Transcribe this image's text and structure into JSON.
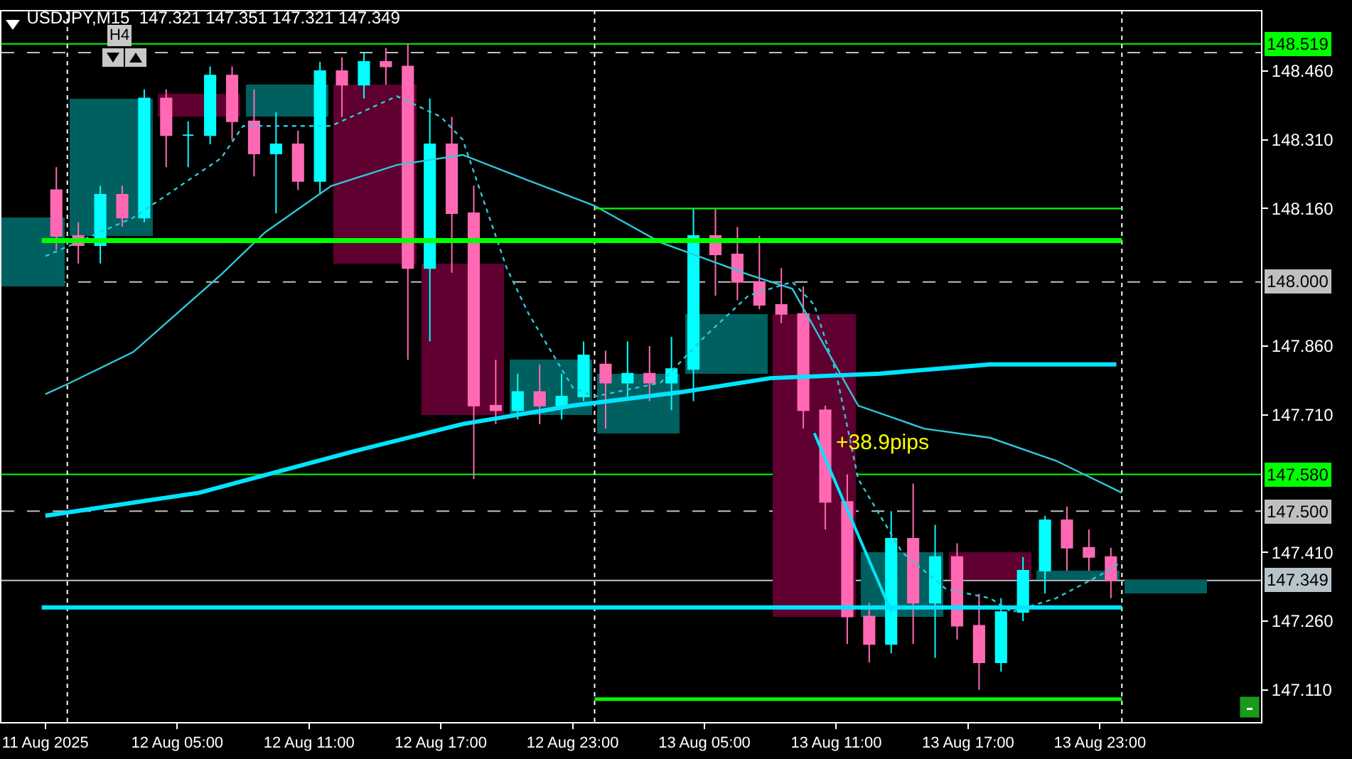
{
  "chart_data": {
    "type": "candlestick",
    "title": "USDJPY,M15  147.321 147.351 147.321 147.349",
    "xlim": [
      "2025-08-11T21:00",
      "2025-08-14T06:20"
    ],
    "xticks": [
      {
        "value": "2025-08-11T23:00",
        "label": "11 Aug 2025"
      },
      {
        "value": "2025-08-12T05:00",
        "label": "12 Aug 05:00"
      },
      {
        "value": "2025-08-12T11:00",
        "label": "12 Aug 11:00"
      },
      {
        "value": "2025-08-12T17:00",
        "label": "12 Aug 17:00"
      },
      {
        "value": "2025-08-12T23:00",
        "label": "12 Aug 23:00"
      },
      {
        "value": "2025-08-13T05:00",
        "label": "13 Aug 05:00"
      },
      {
        "value": "2025-08-13T11:00",
        "label": "13 Aug 11:00"
      },
      {
        "value": "2025-08-13T17:00",
        "label": "13 Aug 17:00"
      },
      {
        "value": "2025-08-13T23:00",
        "label": "13 Aug 23:00"
      }
    ],
    "ylim": [
      147.04,
      148.59
    ],
    "yticks": [
      {
        "value": 147.11,
        "label": "147.110"
      },
      {
        "value": 147.26,
        "label": "147.260"
      },
      {
        "value": 147.41,
        "label": "147.410"
      },
      {
        "value": 147.71,
        "label": "147.710"
      },
      {
        "value": 147.86,
        "label": "147.860"
      },
      {
        "value": 148.16,
        "label": "148.160"
      },
      {
        "value": 148.31,
        "label": "148.310"
      },
      {
        "value": 148.46,
        "label": "148.460"
      }
    ],
    "grid": false,
    "series": [
      {
        "type": "bar",
        "x": [
          "2025-08-11T22:00",
          "2025-08-12T02:00",
          "2025-08-12T06:00",
          "2025-08-12T10:00",
          "2025-08-12T14:00",
          "2025-08-12T18:00",
          "2025-08-12T22:00",
          "2025-08-13T02:00",
          "2025-08-13T06:00",
          "2025-08-13T10:00",
          "2025-08-13T14:00",
          "2025-08-13T18:00",
          "2025-08-13T22:00",
          "2025-08-14T02:00"
        ],
        "base": [
          147.99,
          148.1,
          148.36,
          148.36,
          148.04,
          147.71,
          147.71,
          147.67,
          147.8,
          147.27,
          147.27,
          147.35,
          147.35,
          147.32
        ],
        "values": [
          0.15,
          0.3,
          0.05,
          0.07,
          0.39,
          0.33,
          0.12,
          0.13,
          0.13,
          0.66,
          0.14,
          0.06,
          0.02,
          0.03
        ],
        "colors": [
          "#005f5f",
          "#005f5f",
          "#5f0030",
          "#005f5f",
          "#5f0030",
          "#5f0030",
          "#005f5f",
          "#005f5f",
          "#005f5f",
          "#5f0030",
          "#005f5f",
          "#5f0030",
          "#005f5f",
          "#005f5f"
        ]
      },
      {
        "type": "line",
        "color": "#00e5ff",
        "line_style": "solid",
        "x": [
          "2025-08-11T23:00",
          "2025-08-12T06:00",
          "2025-08-12T13:00",
          "2025-08-12T18:00",
          "2025-08-12T23:00",
          "2025-08-13T04:00",
          "2025-08-13T08:00",
          "2025-08-13T13:00",
          "2025-08-13T18:00",
          "2025-08-13T23:45"
        ],
        "values": [
          147.49,
          147.54,
          147.63,
          147.69,
          147.73,
          147.76,
          147.79,
          147.8,
          147.82,
          147.82
        ]
      },
      {
        "type": "line",
        "color": "#2ec8d8",
        "line_style": "solid",
        "x": [
          "2025-08-11T23:00",
          "2025-08-12T00:00",
          "2025-08-12T03:00",
          "2025-08-12T07:00",
          "2025-08-12T09:00",
          "2025-08-12T12:00",
          "2025-08-12T15:00",
          "2025-08-12T18:00",
          "2025-08-12T21:00",
          "2025-08-13T00:00",
          "2025-08-13T03:00",
          "2025-08-13T07:00",
          "2025-08-13T09:00",
          "2025-08-13T12:00",
          "2025-08-13T15:00",
          "2025-08-13T18:00",
          "2025-08-13T21:00",
          "2025-08-14T00:00"
        ],
        "values": [
          147.755,
          147.777,
          147.847,
          148.016,
          148.108,
          148.209,
          148.255,
          148.277,
          148.221,
          148.166,
          148.086,
          148.016,
          147.985,
          147.73,
          147.68,
          147.66,
          147.61,
          147.54
        ]
      },
      {
        "type": "line",
        "color": "#2ec8d8",
        "line_style": "dotted",
        "x": [
          "2025-08-11T23:00",
          "2025-08-12T03:00",
          "2025-08-12T07:00",
          "2025-08-12T08:00",
          "2025-08-12T12:00",
          "2025-08-12T15:00",
          "2025-08-12T17:00",
          "2025-08-12T18:00",
          "2025-08-12T20:00",
          "2025-08-12T21:00",
          "2025-08-12T23:00",
          "2025-08-13T00:00",
          "2025-08-13T03:00",
          "2025-08-13T05:00",
          "2025-08-13T07:00",
          "2025-08-13T09:00",
          "2025-08-13T10:00",
          "2025-08-13T11:00",
          "2025-08-13T12:00",
          "2025-08-13T14:00",
          "2025-08-13T16:00",
          "2025-08-13T18:00",
          "2025-08-13T19:00",
          "2025-08-13T21:00",
          "2025-08-13T23:00",
          "2025-08-14T00:00"
        ],
        "values": [
          148.056,
          148.14,
          148.27,
          148.34,
          148.34,
          148.405,
          148.36,
          148.31,
          148.03,
          147.93,
          147.77,
          147.75,
          147.78,
          147.88,
          147.97,
          148.0,
          147.95,
          147.8,
          147.57,
          147.41,
          147.33,
          147.31,
          147.28,
          147.31,
          147.36,
          147.39
        ]
      },
      {
        "type": "line",
        "color": "#00ff00",
        "line_style": "solid",
        "x": [
          "2025-08-11T22:50",
          "2025-08-14T00:00"
        ],
        "values": [
          148.09,
          148.09
        ]
      },
      {
        "type": "line",
        "color": "#00ff00",
        "line_style": "solid",
        "x": [
          "2025-08-13T00:00",
          "2025-08-14T00:00"
        ],
        "values": [
          148.16,
          148.16
        ]
      },
      {
        "type": "line",
        "color": "#00ff00",
        "line_style": "solid",
        "x": [
          "2025-08-13T00:00",
          "2025-08-14T00:00"
        ],
        "values": [
          147.09,
          147.09
        ]
      },
      {
        "type": "line",
        "color": "#00e5ff",
        "line_style": "solid",
        "x": [
          "2025-08-11T22:50",
          "2025-08-14T00:00"
        ],
        "values": [
          147.29,
          147.29
        ]
      },
      {
        "type": "line",
        "color": "#00e5ff",
        "line_style": "solid",
        "x": [
          "2025-08-13T10:00",
          "2025-08-13T13:30"
        ],
        "values": [
          147.67,
          147.281
        ]
      },
      {
        "x": [
          "2025-08-11T23:30",
          "2025-08-12T00:30",
          "2025-08-12T01:30",
          "2025-08-12T02:30",
          "2025-08-12T03:30",
          "2025-08-12T04:30",
          "2025-08-12T05:30",
          "2025-08-12T06:30",
          "2025-08-12T07:30",
          "2025-08-12T08:30",
          "2025-08-12T09:30",
          "2025-08-12T10:30",
          "2025-08-12T11:30",
          "2025-08-12T12:30",
          "2025-08-12T13:30",
          "2025-08-12T14:30",
          "2025-08-12T15:30",
          "2025-08-12T16:30",
          "2025-08-12T17:30",
          "2025-08-12T18:30",
          "2025-08-12T19:30",
          "2025-08-12T20:30",
          "2025-08-12T21:30",
          "2025-08-12T22:30",
          "2025-08-12T23:30",
          "2025-08-13T00:30",
          "2025-08-13T01:30",
          "2025-08-13T02:30",
          "2025-08-13T03:30",
          "2025-08-13T04:30",
          "2025-08-13T05:30",
          "2025-08-13T06:30",
          "2025-08-13T07:30",
          "2025-08-13T08:30",
          "2025-08-13T09:30",
          "2025-08-13T10:30",
          "2025-08-13T11:30",
          "2025-08-13T12:30",
          "2025-08-13T13:30",
          "2025-08-13T14:30",
          "2025-08-13T15:30",
          "2025-08-13T16:30",
          "2025-08-13T17:30",
          "2025-08-13T18:30",
          "2025-08-13T19:30",
          "2025-08-13T20:30",
          "2025-08-13T21:30",
          "2025-08-13T22:30",
          "2025-08-13T23:30"
        ],
        "ohlc": [
          [
            148.2,
            148.25,
            148.07,
            148.1
          ],
          [
            148.1,
            148.13,
            148.04,
            148.08
          ],
          [
            148.08,
            148.21,
            148.04,
            148.19
          ],
          [
            148.19,
            148.21,
            148.12,
            148.14
          ],
          [
            148.14,
            148.42,
            148.13,
            148.4
          ],
          [
            148.4,
            148.42,
            148.25,
            148.32
          ],
          [
            148.32,
            148.35,
            148.25,
            148.32
          ],
          [
            148.32,
            148.47,
            148.3,
            148.45
          ],
          [
            148.45,
            148.47,
            148.31,
            148.35
          ],
          [
            148.35,
            148.42,
            148.23,
            148.28
          ],
          [
            148.28,
            148.37,
            148.15,
            148.3
          ],
          [
            148.3,
            148.33,
            148.2,
            148.22
          ],
          [
            148.22,
            148.48,
            148.19,
            148.46
          ],
          [
            148.46,
            148.49,
            148.36,
            148.43
          ],
          [
            148.43,
            148.5,
            148.4,
            148.48
          ],
          [
            148.48,
            148.51,
            148.43,
            148.47
          ],
          [
            148.47,
            148.52,
            147.83,
            148.03
          ],
          [
            148.03,
            148.4,
            147.87,
            148.3
          ],
          [
            148.3,
            148.36,
            148.02,
            148.15
          ],
          [
            148.15,
            148.21,
            147.57,
            147.73
          ],
          [
            147.73,
            147.83,
            147.69,
            147.72
          ],
          [
            147.72,
            147.8,
            147.7,
            147.76
          ],
          [
            147.76,
            147.82,
            147.69,
            147.73
          ],
          [
            147.73,
            147.8,
            147.7,
            147.75
          ],
          [
            147.75,
            147.87,
            147.74,
            147.84
          ],
          [
            147.82,
            147.85,
            147.68,
            147.78
          ],
          [
            147.78,
            147.87,
            147.75,
            147.8
          ],
          [
            147.8,
            147.86,
            147.74,
            147.78
          ],
          [
            147.78,
            147.88,
            147.72,
            147.81
          ],
          [
            147.81,
            148.16,
            147.74,
            148.1
          ],
          [
            148.1,
            148.16,
            147.97,
            148.06
          ],
          [
            148.06,
            148.12,
            147.96,
            148.0
          ],
          [
            148.0,
            148.1,
            147.94,
            147.95
          ],
          [
            147.95,
            148.03,
            147.91,
            147.93
          ],
          [
            147.93,
            147.99,
            147.68,
            147.72
          ],
          [
            147.72,
            147.73,
            147.46,
            147.52
          ],
          [
            147.52,
            147.58,
            147.21,
            147.27
          ],
          [
            147.27,
            147.3,
            147.17,
            147.21
          ],
          [
            147.21,
            147.5,
            147.19,
            147.44
          ],
          [
            147.44,
            147.56,
            147.21,
            147.3
          ],
          [
            147.3,
            147.47,
            147.18,
            147.4
          ],
          [
            147.4,
            147.43,
            147.22,
            147.25
          ],
          [
            147.25,
            147.32,
            147.11,
            147.17
          ],
          [
            147.17,
            147.31,
            147.15,
            147.28
          ],
          [
            147.28,
            147.4,
            147.26,
            147.37
          ],
          [
            147.37,
            147.49,
            147.32,
            147.48
          ],
          [
            147.48,
            147.51,
            147.37,
            147.42
          ],
          [
            147.42,
            147.46,
            147.37,
            147.4
          ],
          [
            147.4,
            147.42,
            147.31,
            147.349
          ]
        ],
        "colors": [
          "#ff69b4",
          "#ff69b4",
          "#00ffff",
          "#ff69b4",
          "#00ffff",
          "#ff69b4",
          "#00ffff",
          "#00ffff",
          "#ff69b4",
          "#ff69b4",
          "#00ffff",
          "#ff69b4",
          "#00ffff",
          "#ff69b4",
          "#00ffff",
          "#ff69b4",
          "#ff69b4",
          "#00ffff",
          "#ff69b4",
          "#ff69b4",
          "#ff69b4",
          "#00ffff",
          "#ff69b4",
          "#00ffff",
          "#00ffff",
          "#ff69b4",
          "#00ffff",
          "#ff69b4",
          "#00ffff",
          "#00ffff",
          "#ff69b4",
          "#ff69b4",
          "#ff69b4",
          "#ff69b4",
          "#ff69b4",
          "#ff69b4",
          "#ff69b4",
          "#ff69b4",
          "#00ffff",
          "#ff69b4",
          "#00ffff",
          "#ff69b4",
          "#ff69b4",
          "#00ffff",
          "#00ffff",
          "#00ffff",
          "#ff69b4",
          "#ff69b4",
          "#ff69b4"
        ]
      }
    ],
    "ref_lines": [
      {
        "axis": "y",
        "value": 148.519,
        "label": "148.519",
        "color": "#00ff00",
        "line_style": "solid"
      },
      {
        "axis": "y",
        "value": 148.5,
        "color": "#c0c0c0",
        "line_style": "dashed"
      },
      {
        "axis": "y",
        "value": 148.0,
        "label": "148.000",
        "color": "#c0c0c0",
        "line_style": "dashed"
      },
      {
        "axis": "y",
        "value": 147.58,
        "label": "147.580",
        "color": "#00ff00",
        "line_style": "solid"
      },
      {
        "axis": "y",
        "value": 147.5,
        "label": "147.500",
        "color": "#c0c0c0",
        "line_style": "dashed"
      },
      {
        "axis": "y",
        "value": 147.349,
        "label": "147.349",
        "color": "#b8c4cc",
        "line_style": "solid"
      },
      {
        "axis": "x",
        "value": "2025-08-12T00:00",
        "color": "#ffffff",
        "line_style": "dotted"
      },
      {
        "axis": "x",
        "value": "2025-08-13T00:00",
        "color": "#ffffff",
        "line_style": "dotted"
      },
      {
        "axis": "x",
        "value": "2025-08-14T00:00",
        "color": "#ffffff",
        "line_style": "dotted"
      }
    ],
    "annotations": [
      "H4",
      {
        "text": "+38.9pips",
        "x": "2025-08-13T10:50",
        "y": 147.65
      }
    ]
  }
}
